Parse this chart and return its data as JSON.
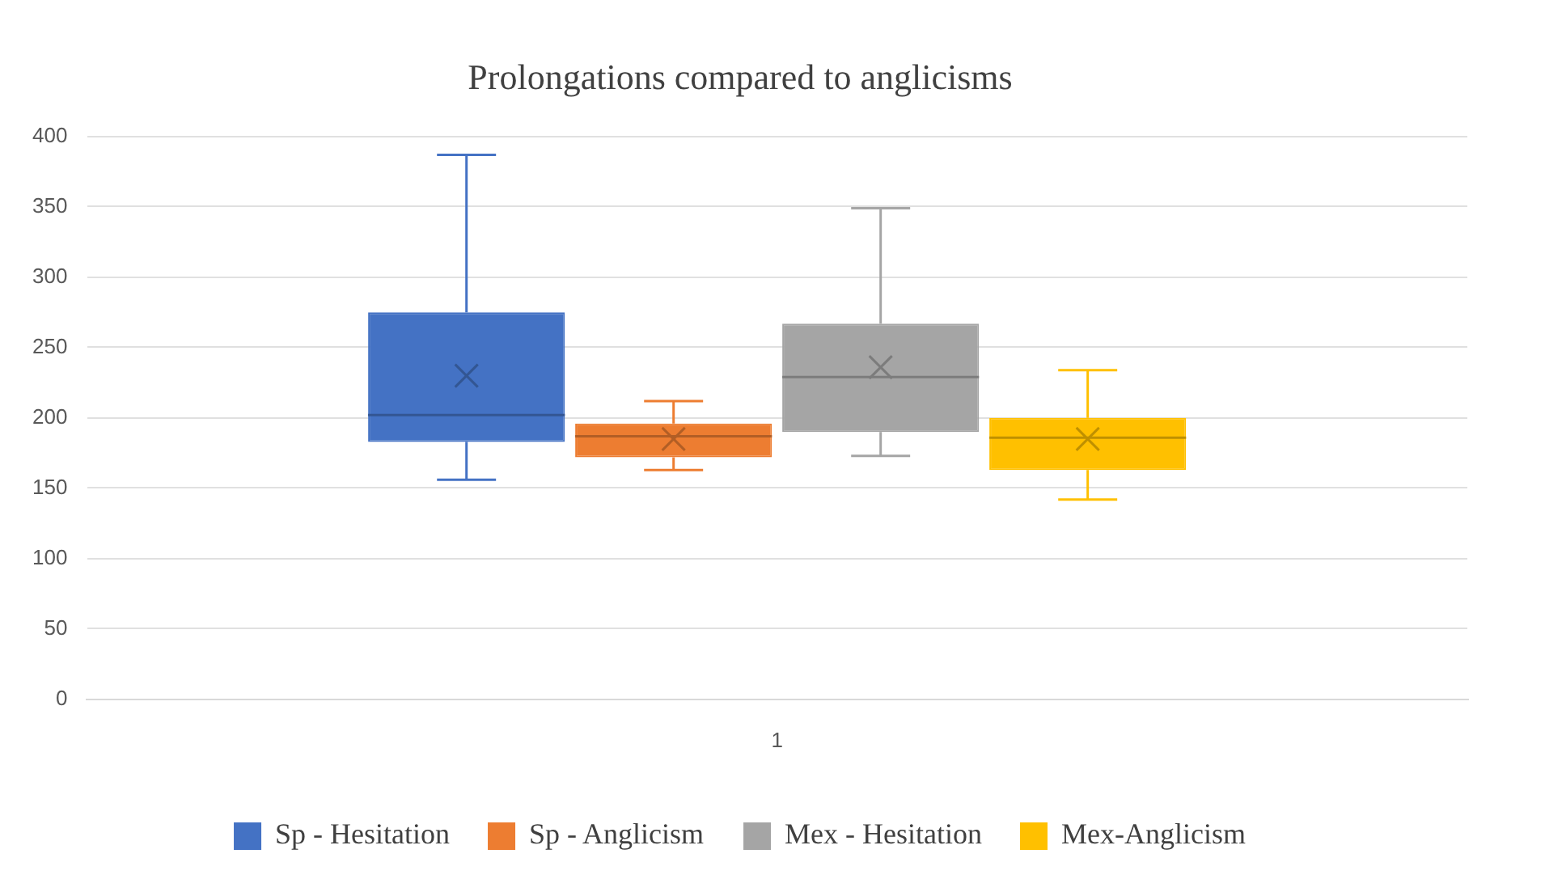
{
  "chart_data": {
    "type": "box",
    "title": "Prolongations compared to anglicisms",
    "categories": [
      "1"
    ],
    "series": [
      {
        "name": "Sp - Hesitation",
        "color": "#4472c4",
        "boxes": [
          {
            "low": 156,
            "q1": 183,
            "median": 202,
            "q3": 275,
            "high": 387,
            "mean": 230
          }
        ]
      },
      {
        "name": "Sp - Anglicism",
        "color": "#ed7d31",
        "boxes": [
          {
            "low": 163,
            "q1": 172,
            "median": 187,
            "q3": 196,
            "high": 212,
            "mean": 185
          }
        ]
      },
      {
        "name": "Mex - Hesitation",
        "color": "#a5a5a5",
        "boxes": [
          {
            "low": 173,
            "q1": 190,
            "median": 229,
            "q3": 267,
            "high": 349,
            "mean": 236
          }
        ]
      },
      {
        "name": "Mex-Anglicism",
        "color": "#ffc000",
        "boxes": [
          {
            "low": 142,
            "q1": 163,
            "median": 186,
            "q3": 200,
            "high": 234,
            "mean": 185
          }
        ]
      }
    ],
    "ylim": [
      0,
      400
    ],
    "yticks": [
      0,
      50,
      100,
      150,
      200,
      250,
      300,
      350,
      400
    ],
    "grid": "y",
    "legend": "bottom"
  }
}
